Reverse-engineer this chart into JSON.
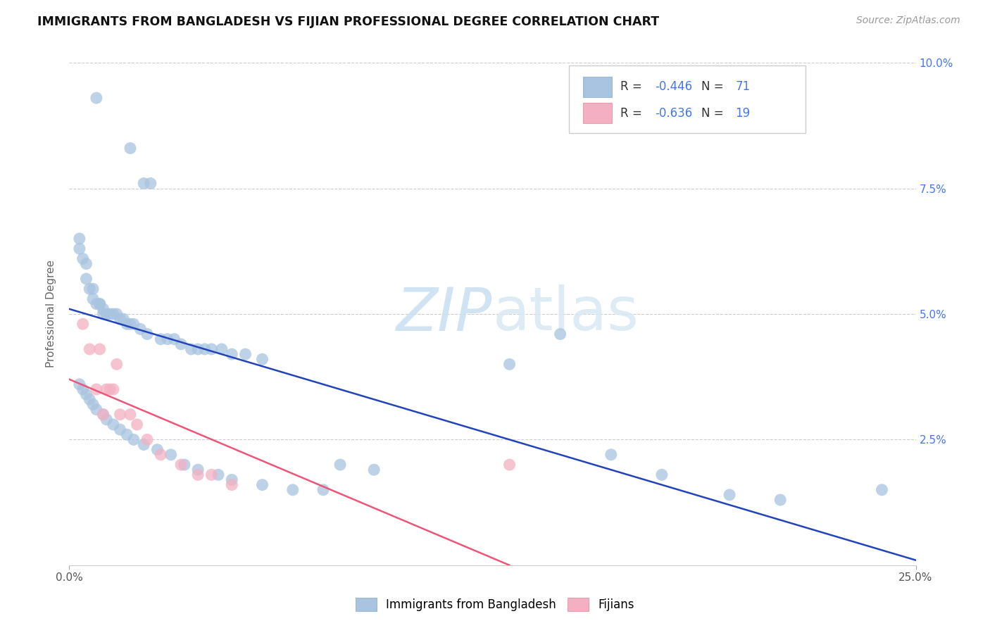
{
  "title": "IMMIGRANTS FROM BANGLADESH VS FIJIAN PROFESSIONAL DEGREE CORRELATION CHART",
  "source": "Source: ZipAtlas.com",
  "ylabel": "Professional Degree",
  "legend_labels": [
    "Immigrants from Bangladesh",
    "Fijians"
  ],
  "R_blue": "-0.446",
  "N_blue": "71",
  "R_pink": "-0.636",
  "N_pink": "19",
  "blue_color": "#a8c4e0",
  "pink_color": "#f4b0c2",
  "line_blue": "#2244bb",
  "line_pink": "#ee5577",
  "text_color": "#333333",
  "num_color": "#4477ee",
  "source_color": "#999999",
  "watermark_color": "#ddeeff",
  "xlim": [
    0.0,
    0.25
  ],
  "ylim": [
    0.0,
    0.1
  ],
  "xticks": [
    0.0,
    0.25
  ],
  "yticks": [
    0.0,
    0.025,
    0.05,
    0.075,
    0.1
  ],
  "xtick_labels": [
    "0.0%",
    "25.0%"
  ],
  "right_ytick_labels": [
    "",
    "2.5%",
    "5.0%",
    "7.5%",
    "10.0%"
  ],
  "grid_yticks": [
    0.025,
    0.05,
    0.075,
    0.1
  ],
  "blue_x": [
    0.008,
    0.018,
    0.022,
    0.024,
    0.003,
    0.003,
    0.004,
    0.005,
    0.005,
    0.006,
    0.007,
    0.007,
    0.008,
    0.009,
    0.009,
    0.01,
    0.01,
    0.011,
    0.012,
    0.013,
    0.014,
    0.015,
    0.016,
    0.017,
    0.018,
    0.019,
    0.021,
    0.023,
    0.027,
    0.029,
    0.031,
    0.033,
    0.036,
    0.038,
    0.04,
    0.042,
    0.045,
    0.048,
    0.052,
    0.057,
    0.003,
    0.004,
    0.005,
    0.006,
    0.007,
    0.008,
    0.01,
    0.011,
    0.013,
    0.015,
    0.017,
    0.019,
    0.022,
    0.026,
    0.03,
    0.034,
    0.038,
    0.044,
    0.048,
    0.057,
    0.066,
    0.075,
    0.13,
    0.145,
    0.16,
    0.175,
    0.195,
    0.21,
    0.24,
    0.08,
    0.09
  ],
  "blue_y": [
    0.093,
    0.083,
    0.076,
    0.076,
    0.065,
    0.063,
    0.061,
    0.06,
    0.057,
    0.055,
    0.055,
    0.053,
    0.052,
    0.052,
    0.052,
    0.051,
    0.05,
    0.05,
    0.05,
    0.05,
    0.05,
    0.049,
    0.049,
    0.048,
    0.048,
    0.048,
    0.047,
    0.046,
    0.045,
    0.045,
    0.045,
    0.044,
    0.043,
    0.043,
    0.043,
    0.043,
    0.043,
    0.042,
    0.042,
    0.041,
    0.036,
    0.035,
    0.034,
    0.033,
    0.032,
    0.031,
    0.03,
    0.029,
    0.028,
    0.027,
    0.026,
    0.025,
    0.024,
    0.023,
    0.022,
    0.02,
    0.019,
    0.018,
    0.017,
    0.016,
    0.015,
    0.015,
    0.04,
    0.046,
    0.022,
    0.018,
    0.014,
    0.013,
    0.015,
    0.02,
    0.019
  ],
  "pink_x": [
    0.004,
    0.006,
    0.008,
    0.009,
    0.01,
    0.011,
    0.012,
    0.013,
    0.014,
    0.015,
    0.018,
    0.02,
    0.023,
    0.027,
    0.033,
    0.038,
    0.042,
    0.048,
    0.13
  ],
  "pink_y": [
    0.048,
    0.043,
    0.035,
    0.043,
    0.03,
    0.035,
    0.035,
    0.035,
    0.04,
    0.03,
    0.03,
    0.028,
    0.025,
    0.022,
    0.02,
    0.018,
    0.018,
    0.016,
    0.02
  ],
  "blue_line_x": [
    0.0,
    0.25
  ],
  "blue_line_y": [
    0.051,
    0.001
  ],
  "pink_line_x": [
    0.0,
    0.13
  ],
  "pink_line_y": [
    0.037,
    0.0
  ]
}
